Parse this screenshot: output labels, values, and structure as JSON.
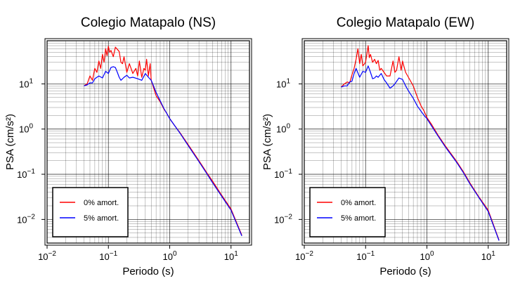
{
  "colors": {
    "undamped": "#ff0000",
    "damped": "#0000ff",
    "grid": "#000000",
    "frame": "#000000"
  },
  "chart_data": [
    {
      "type": "line",
      "title": "Colegio Matapalo (NS)",
      "xlabel": "Periodo (s)",
      "ylabel": "PSA (cm/s²)",
      "xscale": "log",
      "yscale": "log",
      "xlim": [
        0.01,
        20
      ],
      "ylim": [
        0.003,
        90
      ],
      "xticks": [
        {
          "v": 0.01,
          "b": "10",
          "e": "−2"
        },
        {
          "v": 0.1,
          "b": "10",
          "e": "−1"
        },
        {
          "v": 1,
          "b": "10",
          "e": "0"
        },
        {
          "v": 10,
          "b": "10",
          "e": "1"
        }
      ],
      "yticks": [
        {
          "v": 0.01,
          "b": "10",
          "e": "−2"
        },
        {
          "v": 0.1,
          "b": "10",
          "e": "−1"
        },
        {
          "v": 1,
          "b": "10",
          "e": "0"
        },
        {
          "v": 10,
          "b": "10",
          "e": "1"
        }
      ],
      "grid": true,
      "legend": "bottom-left",
      "series": [
        {
          "name": "0% amort.",
          "color": "#ff0000",
          "x": [
            0.04,
            0.045,
            0.05,
            0.055,
            0.06,
            0.065,
            0.07,
            0.075,
            0.08,
            0.085,
            0.09,
            0.095,
            0.1,
            0.105,
            0.11,
            0.12,
            0.13,
            0.14,
            0.15,
            0.16,
            0.17,
            0.18,
            0.2,
            0.22,
            0.25,
            0.28,
            0.3,
            0.32,
            0.35,
            0.38,
            0.4,
            0.42,
            0.45,
            0.48,
            0.5,
            0.55,
            0.6,
            0.7,
            0.8,
            0.9,
            1.0,
            1.2,
            1.5,
            2,
            3,
            4,
            5,
            7,
            10,
            15
          ],
          "values": [
            9,
            10,
            15,
            12,
            22,
            18,
            32,
            22,
            45,
            30,
            60,
            42,
            68,
            50,
            55,
            40,
            65,
            58,
            52,
            30,
            28,
            40,
            18,
            28,
            17,
            22,
            15,
            32,
            14,
            22,
            20,
            35,
            15,
            28,
            12,
            8,
            5.5,
            4,
            2.8,
            2.2,
            1.7,
            1.2,
            0.8,
            0.45,
            0.2,
            0.11,
            0.07,
            0.035,
            0.017,
            0.0045
          ]
        },
        {
          "name": "5% amort.",
          "color": "#0000ff",
          "x": [
            0.04,
            0.045,
            0.05,
            0.055,
            0.06,
            0.07,
            0.08,
            0.09,
            0.1,
            0.11,
            0.12,
            0.13,
            0.14,
            0.15,
            0.16,
            0.18,
            0.2,
            0.22,
            0.25,
            0.3,
            0.35,
            0.4,
            0.45,
            0.5,
            0.6,
            0.7,
            0.8,
            0.9,
            1.0,
            1.2,
            1.5,
            2,
            3,
            4,
            5,
            7,
            10,
            15
          ],
          "values": [
            9,
            9.5,
            10.5,
            10.5,
            13,
            15,
            13.5,
            19,
            17,
            23,
            24,
            23,
            18,
            14,
            12,
            14,
            15.5,
            13.5,
            14,
            13,
            12,
            17,
            14,
            12,
            6.5,
            4.2,
            2.9,
            2.2,
            1.7,
            1.2,
            0.78,
            0.43,
            0.19,
            0.105,
            0.065,
            0.033,
            0.016,
            0.0043
          ]
        }
      ]
    },
    {
      "type": "line",
      "title": "Colegio Matapalo (EW)",
      "xlabel": "Periodo (s)",
      "ylabel": "PSA (cm/s²)",
      "xscale": "log",
      "yscale": "log",
      "xlim": [
        0.01,
        20
      ],
      "ylim": [
        0.003,
        90
      ],
      "xticks": [
        {
          "v": 0.01,
          "b": "10",
          "e": "−2"
        },
        {
          "v": 0.1,
          "b": "10",
          "e": "−1"
        },
        {
          "v": 1,
          "b": "10",
          "e": "0"
        },
        {
          "v": 10,
          "b": "10",
          "e": "1"
        }
      ],
      "yticks": [
        {
          "v": 0.01,
          "b": "10",
          "e": "−2"
        },
        {
          "v": 0.1,
          "b": "10",
          "e": "−1"
        },
        {
          "v": 1,
          "b": "10",
          "e": "0"
        },
        {
          "v": 10,
          "b": "10",
          "e": "1"
        }
      ],
      "grid": true,
      "legend": "bottom-left",
      "series": [
        {
          "name": "0% amort.",
          "color": "#ff0000",
          "x": [
            0.04,
            0.045,
            0.05,
            0.055,
            0.06,
            0.065,
            0.07,
            0.075,
            0.08,
            0.085,
            0.09,
            0.1,
            0.11,
            0.115,
            0.12,
            0.13,
            0.14,
            0.15,
            0.16,
            0.17,
            0.18,
            0.2,
            0.22,
            0.25,
            0.28,
            0.3,
            0.32,
            0.35,
            0.38,
            0.4,
            0.42,
            0.45,
            0.5,
            0.6,
            0.7,
            0.8,
            0.9,
            1.0,
            1.2,
            1.5,
            2,
            3,
            4,
            5,
            7,
            10,
            15
          ],
          "values": [
            8.5,
            10,
            11,
            10.5,
            16,
            22,
            35,
            60,
            28,
            45,
            25,
            30,
            70,
            38,
            45,
            30,
            35,
            28,
            33,
            20,
            22,
            18,
            15,
            15,
            32,
            18,
            20,
            40,
            20,
            32,
            25,
            18,
            14,
            9,
            5,
            3.3,
            2.5,
            1.8,
            1.25,
            0.75,
            0.42,
            0.2,
            0.11,
            0.065,
            0.032,
            0.016,
            0.0035
          ]
        },
        {
          "name": "5% amort.",
          "color": "#0000ff",
          "x": [
            0.04,
            0.045,
            0.05,
            0.055,
            0.06,
            0.065,
            0.07,
            0.08,
            0.09,
            0.1,
            0.11,
            0.12,
            0.13,
            0.14,
            0.15,
            0.16,
            0.18,
            0.2,
            0.22,
            0.25,
            0.28,
            0.3,
            0.35,
            0.4,
            0.45,
            0.5,
            0.6,
            0.7,
            0.8,
            0.9,
            1.0,
            1.2,
            1.5,
            2,
            3,
            4,
            5,
            7,
            10,
            15
          ],
          "values": [
            8.5,
            9,
            9,
            11,
            11.5,
            17,
            22,
            14,
            19,
            18,
            25,
            18,
            13,
            13.5,
            15,
            14,
            17,
            12.5,
            10.5,
            8,
            9,
            10,
            13.5,
            12.5,
            9,
            7,
            4.8,
            3.2,
            2.5,
            2,
            1.7,
            1.15,
            0.72,
            0.4,
            0.19,
            0.105,
            0.062,
            0.031,
            0.015,
            0.0034
          ]
        }
      ]
    }
  ]
}
